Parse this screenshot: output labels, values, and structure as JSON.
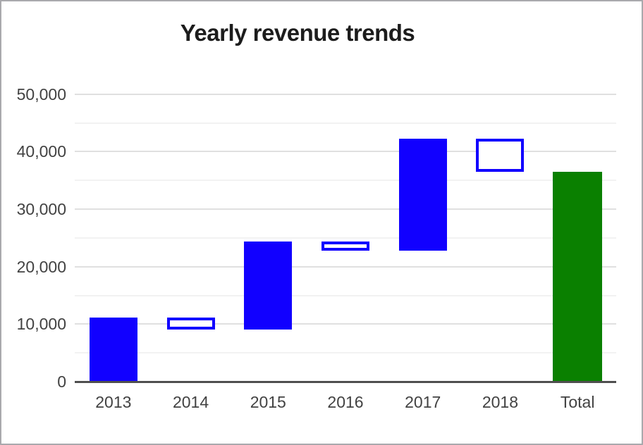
{
  "colors": {
    "increase_fill": "#1100ff",
    "decrease_border": "#1100ff",
    "total_fill": "#0a8000",
    "title_text": "#1c1c1c",
    "axis_text": "#424242",
    "gridline_major": "#e0e0e0",
    "gridline_minor": "#f2f2f2",
    "baseline": "#4f4f4f",
    "frame_border": "#a9a9ad"
  },
  "chart_data": {
    "type": "bar",
    "variant": "waterfall",
    "title": "Yearly revenue trends",
    "categories": [
      "2013",
      "2014",
      "2015",
      "2016",
      "2017",
      "2018",
      "Total"
    ],
    "values": [
      11200,
      -2200,
      15400,
      -1600,
      19400,
      -5700,
      36500
    ],
    "cumulative": [
      [
        0,
        11200
      ],
      [
        11200,
        9000
      ],
      [
        9000,
        24400
      ],
      [
        24400,
        22800
      ],
      [
        22800,
        42200
      ],
      [
        42200,
        36500
      ],
      [
        0,
        36500
      ]
    ],
    "bar_styles": [
      "increase",
      "decrease",
      "increase",
      "decrease",
      "increase",
      "decrease",
      "total"
    ],
    "xlabel": "",
    "ylabel": "",
    "ylim": [
      0,
      50000
    ],
    "ytick_values": [
      0,
      10000,
      20000,
      30000,
      40000,
      50000
    ],
    "ytick_labels": [
      "0",
      "10,000",
      "20,000",
      "30,000",
      "40,000",
      "50,000"
    ],
    "minor_tick_interval": 5000,
    "grid": true,
    "legend": "none",
    "style_meaning": "solid blue = increase, hollow blue outline = decrease, green = total"
  }
}
